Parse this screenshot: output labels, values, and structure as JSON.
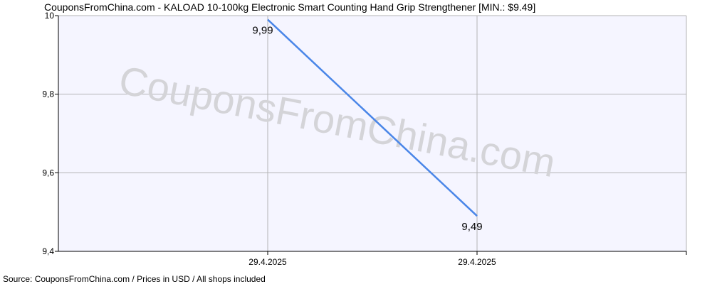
{
  "page": {
    "title": "CouponsFromChina.com - KALOAD 10-100kg Electronic Smart Counting Hand Grip Strengthener [MIN.: $9.49]",
    "source": "Source: CouponsFromChina.com / Prices in USD / All shops included",
    "watermark": "CouponsFromChina.com"
  },
  "colors": {
    "plot_background": "#f5f5ff",
    "grid": "#b4b4b4",
    "axis": "#000000",
    "series": "#4a86e8",
    "watermark": "#d4d4d8"
  },
  "chart_data": {
    "type": "line",
    "categories": [
      "29.4.2025",
      "29.4.2025"
    ],
    "series": [
      {
        "values": [
          9.99,
          9.49
        ],
        "labels": [
          "9,99",
          "9,49"
        ]
      }
    ],
    "ylim": [
      9.4,
      10.0
    ],
    "yticks": [
      9.4,
      9.6,
      9.8,
      10.0
    ],
    "ytick_labels": [
      "9,4",
      "9,6",
      "9,8",
      "10"
    ],
    "grid": true,
    "legend": false
  }
}
